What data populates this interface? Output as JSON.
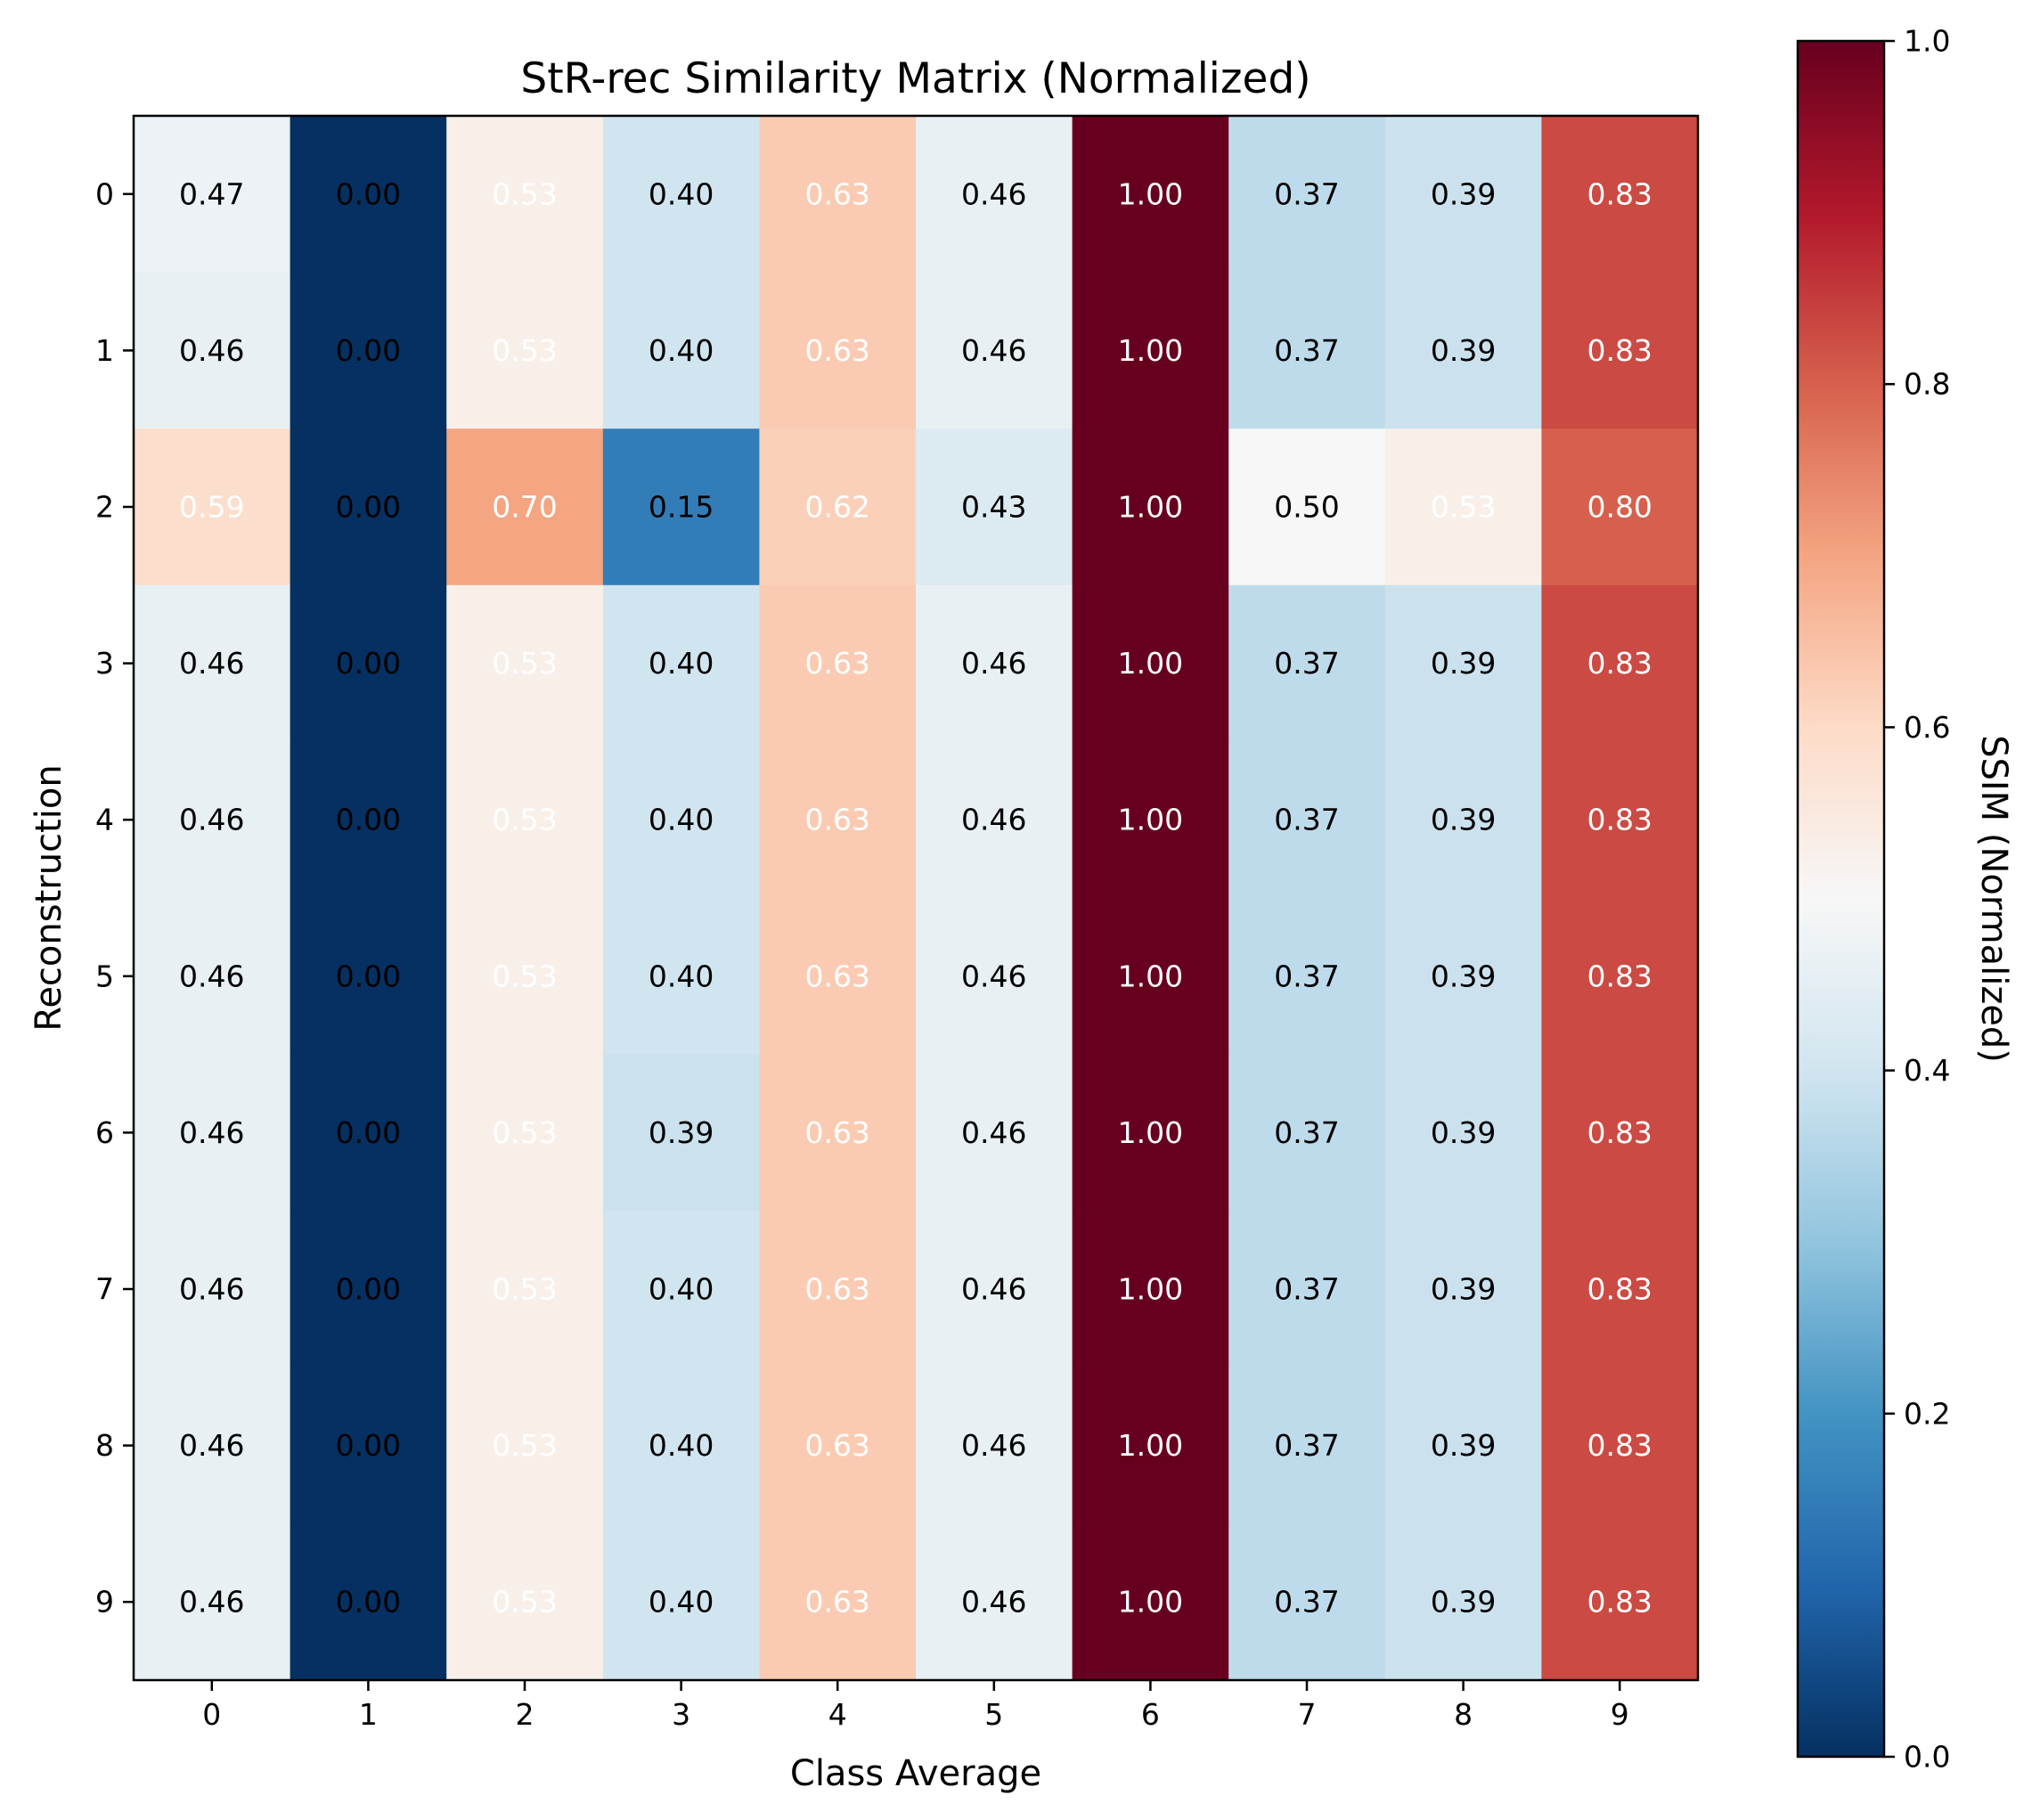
{
  "chart_data": {
    "type": "heatmap",
    "title": "StR-rec Similarity Matrix (Normalized)",
    "xlabel": "Class Average",
    "ylabel": "Reconstruction",
    "x_categories": [
      "0",
      "1",
      "2",
      "3",
      "4",
      "5",
      "6",
      "7",
      "8",
      "9"
    ],
    "y_categories": [
      "0",
      "1",
      "2",
      "3",
      "4",
      "5",
      "6",
      "7",
      "8",
      "9"
    ],
    "values": [
      [
        0.47,
        0.0,
        0.53,
        0.4,
        0.63,
        0.46,
        1.0,
        0.37,
        0.39,
        0.83
      ],
      [
        0.46,
        0.0,
        0.53,
        0.4,
        0.63,
        0.46,
        1.0,
        0.37,
        0.39,
        0.83
      ],
      [
        0.59,
        0.0,
        0.7,
        0.15,
        0.62,
        0.43,
        1.0,
        0.5,
        0.53,
        0.8
      ],
      [
        0.46,
        0.0,
        0.53,
        0.4,
        0.63,
        0.46,
        1.0,
        0.37,
        0.39,
        0.83
      ],
      [
        0.46,
        0.0,
        0.53,
        0.4,
        0.63,
        0.46,
        1.0,
        0.37,
        0.39,
        0.83
      ],
      [
        0.46,
        0.0,
        0.53,
        0.4,
        0.63,
        0.46,
        1.0,
        0.37,
        0.39,
        0.83
      ],
      [
        0.46,
        0.0,
        0.53,
        0.39,
        0.63,
        0.46,
        1.0,
        0.37,
        0.39,
        0.83
      ],
      [
        0.46,
        0.0,
        0.53,
        0.4,
        0.63,
        0.46,
        1.0,
        0.37,
        0.39,
        0.83
      ],
      [
        0.46,
        0.0,
        0.53,
        0.4,
        0.63,
        0.46,
        1.0,
        0.37,
        0.39,
        0.83
      ],
      [
        0.46,
        0.0,
        0.53,
        0.4,
        0.63,
        0.46,
        1.0,
        0.37,
        0.39,
        0.83
      ]
    ],
    "colormap": "RdBu_r",
    "colormap_stops": [
      "#053061",
      "#2166ac",
      "#4393c3",
      "#92c5de",
      "#d1e5f0",
      "#f7f7f7",
      "#fddbc7",
      "#f4a582",
      "#d6604d",
      "#b2182b",
      "#67001f"
    ],
    "vmin": 0.0,
    "vmax": 1.0,
    "colorbar": {
      "label": "SSIM (Normalized)",
      "ticks": [
        "0.0",
        "0.2",
        "0.4",
        "0.6",
        "0.8",
        "1.0"
      ],
      "position": "right"
    },
    "grid": false
  }
}
